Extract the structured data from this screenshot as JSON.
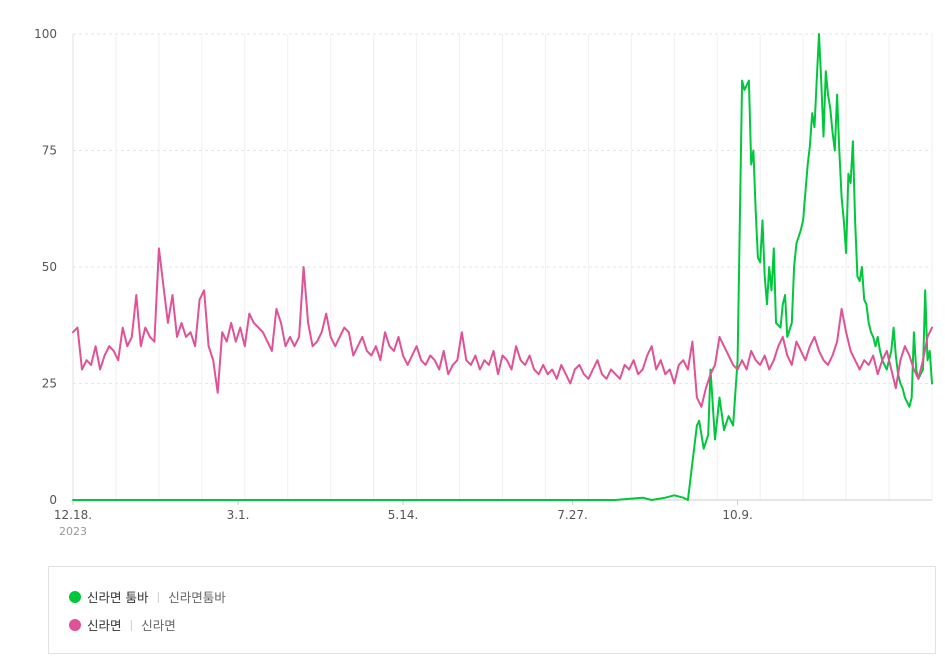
{
  "chart_data": {
    "type": "line",
    "ylim": [
      0,
      100
    ],
    "y_ticks": [
      "0",
      "25",
      "50",
      "75",
      "100"
    ],
    "x_ticks": [
      "12.18.",
      "3.1.",
      "5.14.",
      "7.27.",
      "10.9."
    ],
    "x_sublabel": "2023",
    "grid": true,
    "x_points": 370,
    "series": [
      {
        "name": "신라면 툼바",
        "keywords": "신라면툼바",
        "color": "#00c73c",
        "points": [
          [
            0,
            0
          ],
          [
            240,
            0
          ],
          [
            252,
            0.5
          ],
          [
            256,
            0
          ],
          [
            262,
            0.5
          ],
          [
            266,
            1
          ],
          [
            270,
            0.5
          ],
          [
            272,
            0
          ],
          [
            274,
            8
          ],
          [
            276,
            16
          ],
          [
            277,
            17
          ],
          [
            279,
            11
          ],
          [
            281,
            14
          ],
          [
            282,
            28
          ],
          [
            284,
            13
          ],
          [
            286,
            22
          ],
          [
            288,
            15
          ],
          [
            290,
            18
          ],
          [
            292,
            16
          ],
          [
            294,
            30
          ],
          [
            296,
            90
          ],
          [
            297,
            88
          ],
          [
            299,
            90
          ],
          [
            300,
            72
          ],
          [
            301,
            75
          ],
          [
            302,
            62
          ],
          [
            303,
            52
          ],
          [
            304,
            51
          ],
          [
            305,
            60
          ],
          [
            306,
            48
          ],
          [
            307,
            42
          ],
          [
            308,
            50
          ],
          [
            309,
            45
          ],
          [
            310,
            54
          ],
          [
            311,
            38
          ],
          [
            313,
            37
          ],
          [
            314,
            42
          ],
          [
            315,
            44
          ],
          [
            316,
            35
          ],
          [
            318,
            38
          ],
          [
            319,
            50
          ],
          [
            320,
            55
          ],
          [
            322,
            58
          ],
          [
            323,
            60
          ],
          [
            324,
            66
          ],
          [
            325,
            72
          ],
          [
            326,
            76
          ],
          [
            327,
            83
          ],
          [
            328,
            80
          ],
          [
            329,
            90
          ],
          [
            330,
            100
          ],
          [
            331,
            90
          ],
          [
            332,
            78
          ],
          [
            333,
            92
          ],
          [
            334,
            87
          ],
          [
            335,
            84
          ],
          [
            336,
            79
          ],
          [
            337,
            75
          ],
          [
            338,
            87
          ],
          [
            339,
            75
          ],
          [
            340,
            65
          ],
          [
            341,
            60
          ],
          [
            342,
            53
          ],
          [
            343,
            70
          ],
          [
            344,
            68
          ],
          [
            345,
            77
          ],
          [
            346,
            60
          ],
          [
            347,
            48
          ],
          [
            348,
            47
          ],
          [
            349,
            50
          ],
          [
            350,
            43
          ],
          [
            351,
            42
          ],
          [
            352,
            38
          ],
          [
            353,
            36
          ],
          [
            354,
            35
          ],
          [
            355,
            33
          ],
          [
            356,
            35
          ],
          [
            357,
            32
          ],
          [
            358,
            30
          ],
          [
            359,
            29
          ],
          [
            360,
            28
          ],
          [
            361,
            30
          ],
          [
            362,
            32
          ],
          [
            363,
            37
          ],
          [
            364,
            31
          ],
          [
            365,
            27
          ],
          [
            366,
            25
          ],
          [
            367,
            24
          ],
          [
            368,
            22
          ],
          [
            369,
            21
          ],
          [
            370,
            20
          ],
          [
            371,
            22
          ],
          [
            372,
            36
          ],
          [
            373,
            28
          ],
          [
            374,
            26
          ],
          [
            375,
            27
          ],
          [
            376,
            28
          ],
          [
            377,
            45
          ],
          [
            378,
            30
          ],
          [
            379,
            32
          ],
          [
            380,
            25
          ]
        ]
      },
      {
        "name": "신라면",
        "keywords": "신라면",
        "color": "#e05297",
        "points": [
          [
            0,
            36
          ],
          [
            2,
            37
          ],
          [
            4,
            28
          ],
          [
            6,
            30
          ],
          [
            8,
            29
          ],
          [
            10,
            33
          ],
          [
            12,
            28
          ],
          [
            14,
            31
          ],
          [
            16,
            33
          ],
          [
            18,
            32
          ],
          [
            20,
            30
          ],
          [
            22,
            37
          ],
          [
            24,
            33
          ],
          [
            26,
            35
          ],
          [
            28,
            44
          ],
          [
            30,
            33
          ],
          [
            32,
            37
          ],
          [
            34,
            35
          ],
          [
            36,
            34
          ],
          [
            38,
            54
          ],
          [
            40,
            46
          ],
          [
            42,
            38
          ],
          [
            44,
            44
          ],
          [
            46,
            35
          ],
          [
            48,
            38
          ],
          [
            50,
            35
          ],
          [
            52,
            36
          ],
          [
            54,
            33
          ],
          [
            56,
            43
          ],
          [
            58,
            45
          ],
          [
            60,
            33
          ],
          [
            62,
            30
          ],
          [
            64,
            23
          ],
          [
            66,
            36
          ],
          [
            68,
            34
          ],
          [
            70,
            38
          ],
          [
            72,
            34
          ],
          [
            74,
            37
          ],
          [
            76,
            33
          ],
          [
            78,
            40
          ],
          [
            80,
            38
          ],
          [
            82,
            37
          ],
          [
            84,
            36
          ],
          [
            86,
            34
          ],
          [
            88,
            32
          ],
          [
            90,
            41
          ],
          [
            92,
            38
          ],
          [
            94,
            33
          ],
          [
            96,
            35
          ],
          [
            98,
            33
          ],
          [
            100,
            35
          ],
          [
            102,
            50
          ],
          [
            104,
            38
          ],
          [
            106,
            33
          ],
          [
            108,
            34
          ],
          [
            110,
            36
          ],
          [
            112,
            40
          ],
          [
            114,
            35
          ],
          [
            116,
            33
          ],
          [
            118,
            35
          ],
          [
            120,
            37
          ],
          [
            122,
            36
          ],
          [
            124,
            31
          ],
          [
            126,
            33
          ],
          [
            128,
            35
          ],
          [
            130,
            32
          ],
          [
            132,
            31
          ],
          [
            134,
            33
          ],
          [
            136,
            30
          ],
          [
            138,
            36
          ],
          [
            140,
            33
          ],
          [
            142,
            32
          ],
          [
            144,
            35
          ],
          [
            146,
            31
          ],
          [
            148,
            29
          ],
          [
            150,
            31
          ],
          [
            152,
            33
          ],
          [
            154,
            30
          ],
          [
            156,
            29
          ],
          [
            158,
            31
          ],
          [
            160,
            30
          ],
          [
            162,
            28
          ],
          [
            164,
            32
          ],
          [
            166,
            27
          ],
          [
            168,
            29
          ],
          [
            170,
            30
          ],
          [
            172,
            36
          ],
          [
            174,
            30
          ],
          [
            176,
            29
          ],
          [
            178,
            31
          ],
          [
            180,
            28
          ],
          [
            182,
            30
          ],
          [
            184,
            29
          ],
          [
            186,
            32
          ],
          [
            188,
            27
          ],
          [
            190,
            31
          ],
          [
            192,
            30
          ],
          [
            194,
            28
          ],
          [
            196,
            33
          ],
          [
            198,
            30
          ],
          [
            200,
            29
          ],
          [
            202,
            31
          ],
          [
            204,
            28
          ],
          [
            206,
            27
          ],
          [
            208,
            29
          ],
          [
            210,
            27
          ],
          [
            212,
            28
          ],
          [
            214,
            26
          ],
          [
            216,
            29
          ],
          [
            218,
            27
          ],
          [
            220,
            25
          ],
          [
            222,
            28
          ],
          [
            224,
            29
          ],
          [
            226,
            27
          ],
          [
            228,
            26
          ],
          [
            230,
            28
          ],
          [
            232,
            30
          ],
          [
            234,
            27
          ],
          [
            236,
            26
          ],
          [
            238,
            28
          ],
          [
            240,
            27
          ],
          [
            242,
            26
          ],
          [
            244,
            29
          ],
          [
            246,
            28
          ],
          [
            248,
            30
          ],
          [
            250,
            27
          ],
          [
            252,
            28
          ],
          [
            254,
            31
          ],
          [
            256,
            33
          ],
          [
            258,
            28
          ],
          [
            260,
            30
          ],
          [
            262,
            27
          ],
          [
            264,
            28
          ],
          [
            266,
            25
          ],
          [
            268,
            29
          ],
          [
            270,
            30
          ],
          [
            272,
            28
          ],
          [
            274,
            34
          ],
          [
            276,
            22
          ],
          [
            278,
            20
          ],
          [
            280,
            24
          ],
          [
            282,
            27
          ],
          [
            284,
            29
          ],
          [
            286,
            35
          ],
          [
            288,
            33
          ],
          [
            290,
            31
          ],
          [
            292,
            29
          ],
          [
            294,
            28
          ],
          [
            296,
            30
          ],
          [
            298,
            28
          ],
          [
            300,
            32
          ],
          [
            302,
            30
          ],
          [
            304,
            29
          ],
          [
            306,
            31
          ],
          [
            308,
            28
          ],
          [
            310,
            30
          ],
          [
            312,
            33
          ],
          [
            314,
            35
          ],
          [
            316,
            31
          ],
          [
            318,
            29
          ],
          [
            320,
            34
          ],
          [
            322,
            32
          ],
          [
            324,
            30
          ],
          [
            326,
            33
          ],
          [
            328,
            35
          ],
          [
            330,
            32
          ],
          [
            332,
            30
          ],
          [
            334,
            29
          ],
          [
            336,
            31
          ],
          [
            338,
            34
          ],
          [
            340,
            41
          ],
          [
            342,
            36
          ],
          [
            344,
            32
          ],
          [
            346,
            30
          ],
          [
            348,
            28
          ],
          [
            350,
            30
          ],
          [
            352,
            29
          ],
          [
            354,
            31
          ],
          [
            356,
            27
          ],
          [
            358,
            30
          ],
          [
            360,
            32
          ],
          [
            362,
            28
          ],
          [
            364,
            24
          ],
          [
            366,
            30
          ],
          [
            368,
            33
          ],
          [
            370,
            31
          ],
          [
            372,
            28
          ],
          [
            374,
            26
          ],
          [
            376,
            30
          ],
          [
            378,
            35
          ],
          [
            380,
            37
          ]
        ]
      }
    ]
  }
}
